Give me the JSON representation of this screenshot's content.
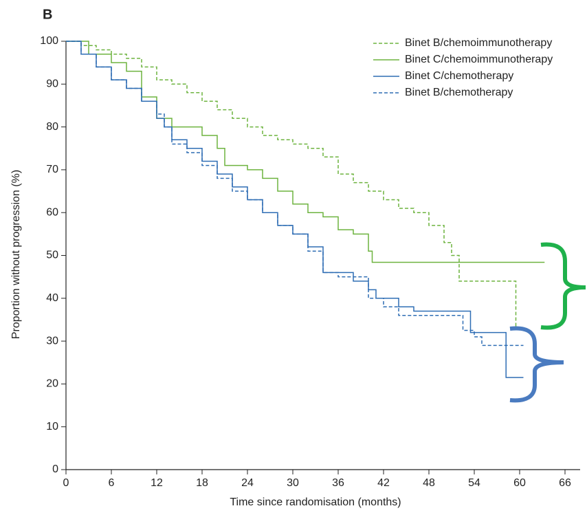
{
  "chart_data": {
    "type": "line",
    "panel_label": "B",
    "xlabel": "Time since randomisation (months)",
    "ylabel": "Proportion without progression (%)",
    "xlim": [
      0,
      68
    ],
    "ylim": [
      0,
      100
    ],
    "xticks": [
      0,
      6,
      12,
      18,
      24,
      30,
      36,
      42,
      48,
      54,
      60,
      66
    ],
    "yticks": [
      0,
      10,
      20,
      30,
      40,
      50,
      60,
      70,
      80,
      90,
      100
    ],
    "step": true,
    "legend": "upper right",
    "series": [
      {
        "name": "Binet B/chemoimmunotherapy",
        "color": "#6db33f",
        "dashed": true,
        "x": [
          0,
          2,
          4,
          6,
          8,
          10,
          12,
          14,
          16,
          18,
          20,
          22,
          24,
          26,
          28,
          30,
          32,
          34,
          36,
          38,
          40,
          42,
          44,
          46,
          48,
          50,
          51,
          52,
          59.5,
          59.7
        ],
        "values": [
          100,
          99,
          98,
          97,
          96,
          94,
          91,
          90,
          88,
          86,
          84,
          82,
          80,
          78,
          77,
          76,
          75,
          73,
          69,
          67,
          65,
          63,
          61,
          60,
          57,
          53,
          50,
          44,
          33.4,
          33.4
        ]
      },
      {
        "name": "Binet C/chemoimmunotherapy",
        "color": "#6db33f",
        "dashed": false,
        "x": [
          0,
          3,
          6,
          8,
          10,
          12,
          14,
          18,
          20,
          21,
          24,
          26,
          28,
          30,
          32,
          34,
          36,
          38,
          40,
          40.5,
          63.3
        ],
        "values": [
          100,
          97,
          95,
          93,
          87,
          82,
          80,
          78,
          75,
          71,
          70,
          68,
          65,
          62,
          60,
          59,
          56,
          55,
          51,
          48.4,
          48.4
        ]
      },
      {
        "name": "Binet C/chemotherapy",
        "color": "#2e6db4",
        "dashed": false,
        "x": [
          0,
          2,
          4,
          6,
          8,
          10,
          12,
          13,
          14,
          16,
          18,
          20,
          22,
          24,
          26,
          28,
          30,
          32,
          34,
          36,
          38,
          40,
          41,
          44,
          46,
          53,
          53.5,
          58,
          58.2,
          60.5
        ],
        "values": [
          100,
          97,
          94,
          91,
          89,
          86,
          82,
          80,
          77,
          75,
          72,
          69,
          66,
          63,
          60,
          57,
          55,
          52,
          46,
          46,
          44,
          42,
          40,
          38,
          37,
          37,
          32,
          32,
          21.5,
          21.5
        ]
      },
      {
        "name": "Binet B/chemotherapy",
        "color": "#2e6db4",
        "dashed": true,
        "x": [
          0,
          2,
          4,
          6,
          8,
          10,
          12,
          13,
          14,
          16,
          18,
          20,
          22,
          24,
          26,
          28,
          30,
          32,
          34,
          36,
          40,
          42,
          44,
          52,
          52.5,
          54,
          55,
          60.5
        ],
        "values": [
          100,
          97,
          94,
          91,
          89,
          86,
          83,
          80,
          76,
          74,
          71,
          68,
          65,
          63,
          60,
          57,
          55,
          51,
          46,
          45,
          40,
          38,
          36,
          36,
          32.5,
          31,
          29,
          29
        ]
      }
    ]
  }
}
